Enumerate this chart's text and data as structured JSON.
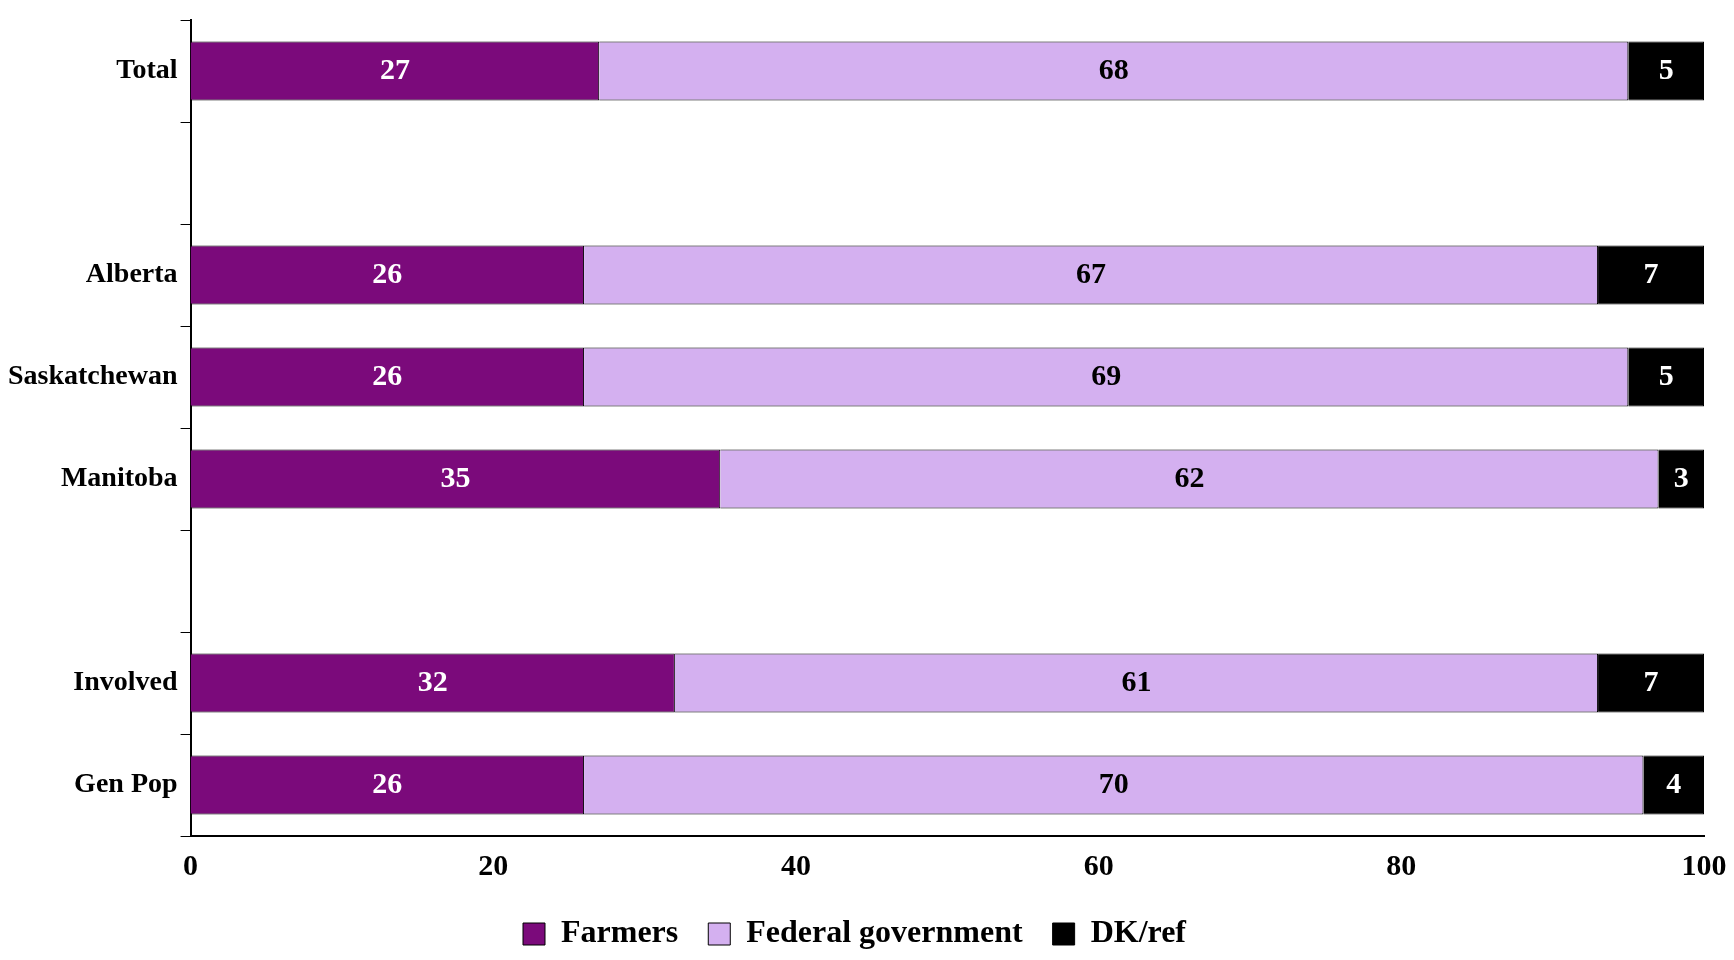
{
  "chart_data": {
    "type": "bar",
    "orientation": "horizontal",
    "stacked": true,
    "categories": [
      "Total",
      null,
      "Alberta",
      "Saskatchewan",
      "Manitoba",
      null,
      "Involved",
      "Gen Pop"
    ],
    "series": [
      {
        "name": "Farmers",
        "color": "#7b0a7b",
        "values": [
          27,
          null,
          26,
          26,
          35,
          null,
          32,
          26
        ]
      },
      {
        "name": "Federal government",
        "color": "#d4b0f0",
        "values": [
          68,
          null,
          67,
          69,
          62,
          null,
          61,
          70
        ]
      },
      {
        "name": "DK/ref",
        "color": "#000000",
        "values": [
          5,
          null,
          7,
          5,
          3,
          null,
          7,
          4
        ]
      }
    ],
    "xlim": [
      0,
      100
    ],
    "xticks": [
      0,
      20,
      40,
      60,
      80,
      100
    ],
    "grid": false,
    "legend": "bottom",
    "data_labels": true
  }
}
